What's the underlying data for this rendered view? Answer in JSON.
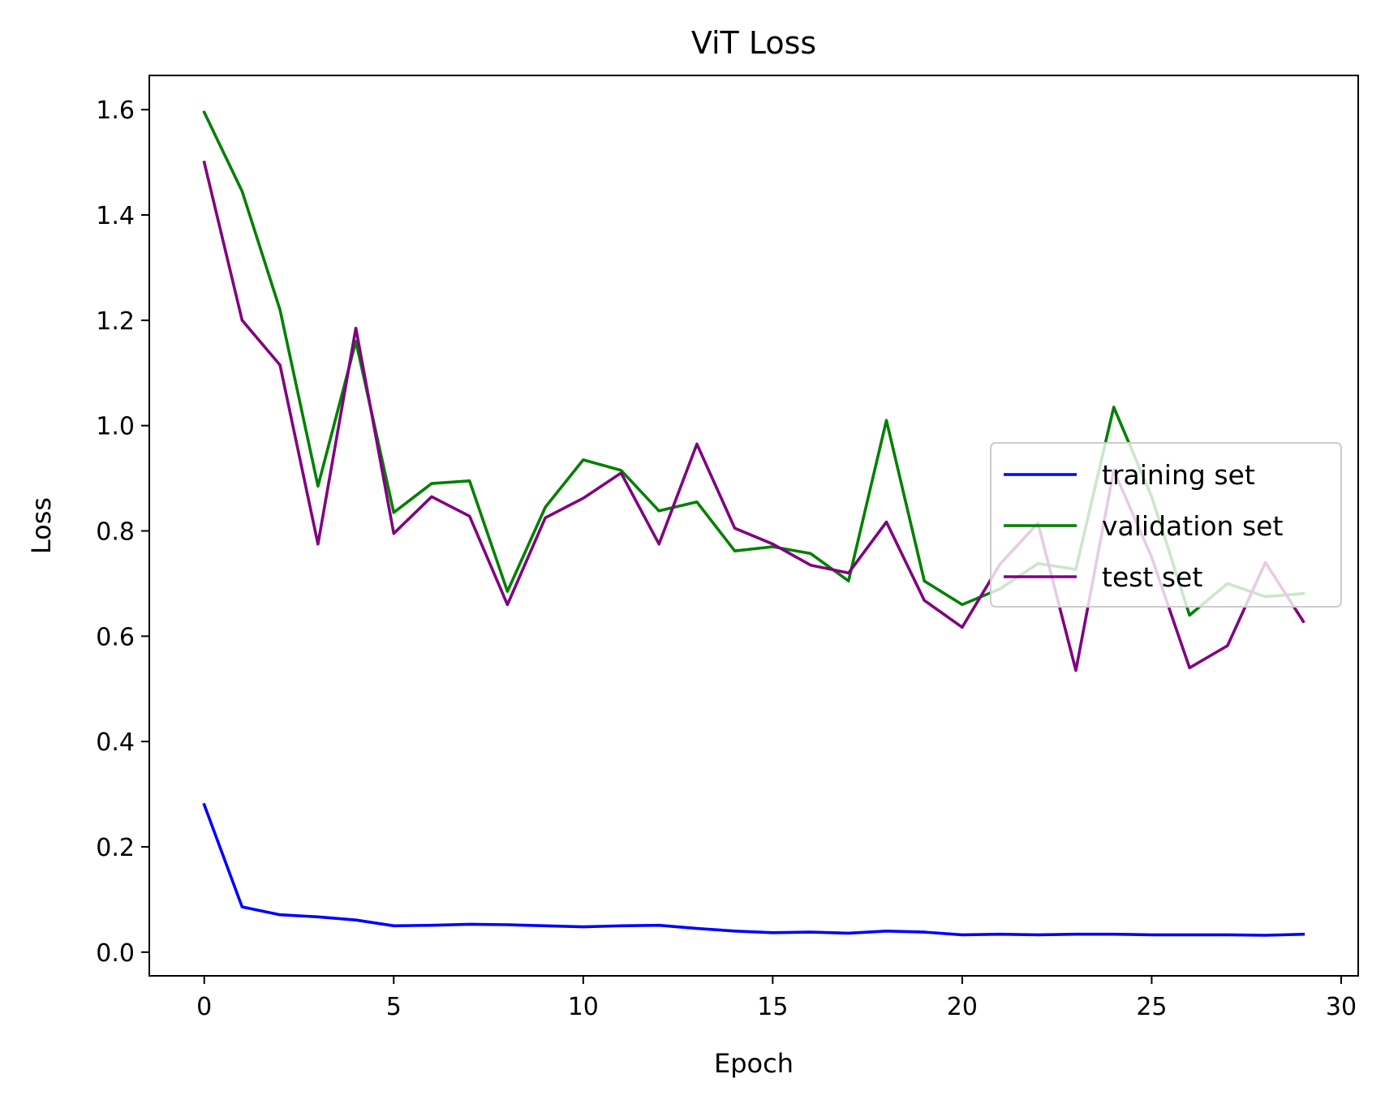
{
  "chart_data": {
    "type": "line",
    "title": "ViT Loss",
    "xlabel": "Epoch",
    "ylabel": "Loss",
    "xlim": [
      -1.45,
      30.45
    ],
    "ylim": [
      -0.045,
      1.665
    ],
    "xticks": [
      0,
      5,
      10,
      15,
      20,
      25,
      30
    ],
    "xtick_labels": [
      "0",
      "5",
      "10",
      "15",
      "20",
      "25",
      "30"
    ],
    "yticks": [
      0.0,
      0.2,
      0.4,
      0.6,
      0.8,
      1.0,
      1.2,
      1.4,
      1.6
    ],
    "ytick_labels": [
      "0.0",
      "0.2",
      "0.4",
      "0.6",
      "0.8",
      "1.0",
      "1.2",
      "1.4",
      "1.6"
    ],
    "grid": false,
    "legend_position": "center-right",
    "x": [
      0,
      1,
      2,
      3,
      4,
      5,
      6,
      7,
      8,
      9,
      10,
      11,
      12,
      13,
      14,
      15,
      16,
      17,
      18,
      19,
      20,
      21,
      22,
      23,
      24,
      25,
      26,
      27,
      28,
      29
    ],
    "series": [
      {
        "name": "training set",
        "color": "#0000ff",
        "values": [
          0.28,
          0.086,
          0.071,
          0.067,
          0.061,
          0.05,
          0.051,
          0.053,
          0.052,
          0.05,
          0.048,
          0.05,
          0.051,
          0.045,
          0.04,
          0.037,
          0.038,
          0.036,
          0.04,
          0.038,
          0.033,
          0.034,
          0.033,
          0.034,
          0.034,
          0.033,
          0.033,
          0.033,
          0.032,
          0.034
        ]
      },
      {
        "name": "validation set",
        "color": "#008000",
        "values": [
          1.595,
          1.445,
          1.22,
          0.885,
          1.16,
          0.835,
          0.89,
          0.895,
          0.685,
          0.845,
          0.935,
          0.915,
          0.838,
          0.855,
          0.762,
          0.77,
          0.757,
          0.705,
          1.01,
          0.705,
          0.66,
          0.69,
          0.738,
          0.727,
          1.035,
          0.865,
          0.64,
          0.7,
          0.675,
          0.681
        ]
      },
      {
        "name": "test set",
        "color": "#800080",
        "values": [
          1.5,
          1.2,
          1.115,
          0.775,
          1.185,
          0.795,
          0.865,
          0.828,
          0.66,
          0.825,
          0.862,
          0.91,
          0.775,
          0.965,
          0.805,
          0.775,
          0.735,
          0.72,
          0.817,
          0.668,
          0.617,
          0.737,
          0.815,
          0.535,
          0.915,
          0.75,
          0.54,
          0.582,
          0.74,
          0.628
        ]
      }
    ]
  }
}
